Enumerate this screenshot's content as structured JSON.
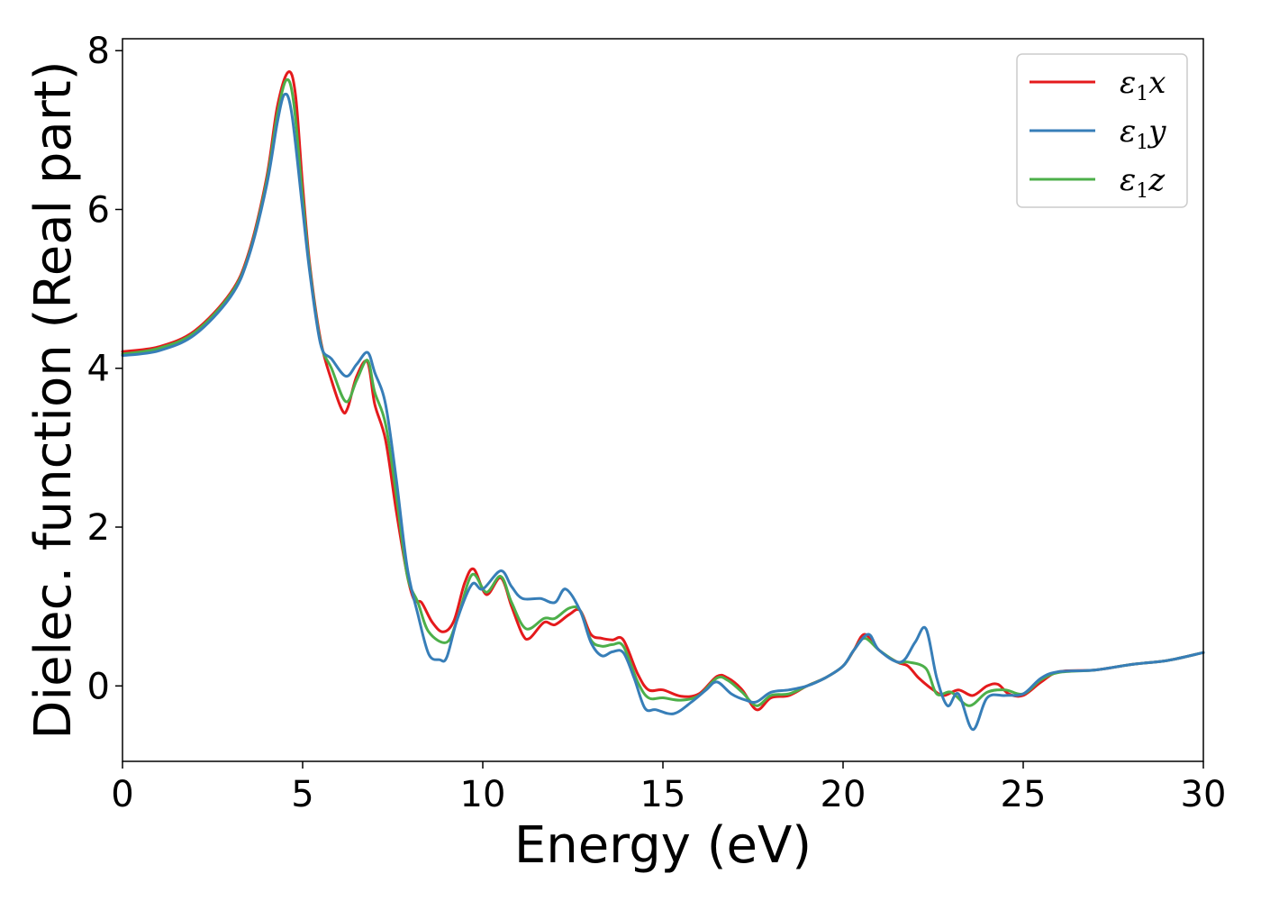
{
  "chart_data": {
    "type": "line",
    "xlabel": "Energy (eV)",
    "ylabel": "Dielec. function (Real part)",
    "xlim": [
      0,
      30
    ],
    "ylim": [
      -0.95,
      8.15
    ],
    "xticks": [
      "0",
      "5",
      "10",
      "15",
      "20",
      "25",
      "30"
    ],
    "yticks": [
      "0",
      "2",
      "4",
      "6",
      "8"
    ],
    "grid": false,
    "legend_position": "top-right",
    "series": [
      {
        "name": "ε1x",
        "legend_base": "ε",
        "legend_sub": "1",
        "legend_tail": "x",
        "color": "#e41a1c",
        "points": [
          [
            0,
            4.21
          ],
          [
            1,
            4.27
          ],
          [
            2,
            4.47
          ],
          [
            3,
            4.95
          ],
          [
            3.5,
            5.45
          ],
          [
            4,
            6.4
          ],
          [
            4.3,
            7.3
          ],
          [
            4.6,
            7.73
          ],
          [
            4.8,
            7.45
          ],
          [
            5.0,
            6.3
          ],
          [
            5.2,
            5.3
          ],
          [
            5.5,
            4.35
          ],
          [
            5.8,
            3.85
          ],
          [
            6.1,
            3.47
          ],
          [
            6.25,
            3.5
          ],
          [
            6.5,
            3.9
          ],
          [
            6.8,
            4.08
          ],
          [
            7.0,
            3.55
          ],
          [
            7.3,
            3.1
          ],
          [
            7.6,
            2.2
          ],
          [
            7.9,
            1.4
          ],
          [
            8.1,
            1.08
          ],
          [
            8.3,
            1.05
          ],
          [
            8.6,
            0.8
          ],
          [
            8.9,
            0.68
          ],
          [
            9.2,
            0.82
          ],
          [
            9.5,
            1.3
          ],
          [
            9.75,
            1.47
          ],
          [
            10.1,
            1.15
          ],
          [
            10.5,
            1.36
          ],
          [
            10.8,
            1.0
          ],
          [
            11.1,
            0.65
          ],
          [
            11.3,
            0.6
          ],
          [
            11.7,
            0.8
          ],
          [
            12.0,
            0.77
          ],
          [
            12.4,
            0.9
          ],
          [
            12.7,
            0.95
          ],
          [
            13.0,
            0.65
          ],
          [
            13.3,
            0.6
          ],
          [
            13.6,
            0.58
          ],
          [
            13.9,
            0.58
          ],
          [
            14.3,
            0.15
          ],
          [
            14.6,
            -0.05
          ],
          [
            15.0,
            -0.05
          ],
          [
            15.5,
            -0.13
          ],
          [
            16.0,
            -0.1
          ],
          [
            16.5,
            0.12
          ],
          [
            16.8,
            0.1
          ],
          [
            17.2,
            -0.05
          ],
          [
            17.6,
            -0.3
          ],
          [
            18.0,
            -0.15
          ],
          [
            18.5,
            -0.12
          ],
          [
            19.0,
            0.0
          ],
          [
            19.5,
            0.1
          ],
          [
            20.0,
            0.25
          ],
          [
            20.3,
            0.45
          ],
          [
            20.6,
            0.65
          ],
          [
            21.0,
            0.45
          ],
          [
            21.5,
            0.3
          ],
          [
            21.8,
            0.25
          ],
          [
            22.1,
            0.1
          ],
          [
            22.5,
            -0.05
          ],
          [
            22.8,
            -0.12
          ],
          [
            23.2,
            -0.05
          ],
          [
            23.6,
            -0.12
          ],
          [
            24.0,
            0.0
          ],
          [
            24.3,
            0.02
          ],
          [
            24.6,
            -0.1
          ],
          [
            25.0,
            -0.12
          ],
          [
            25.5,
            0.05
          ],
          [
            26.0,
            0.18
          ],
          [
            27.0,
            0.2
          ],
          [
            28.0,
            0.27
          ],
          [
            29.0,
            0.32
          ],
          [
            30,
            0.42
          ]
        ]
      },
      {
        "name": "ε1y",
        "legend_base": "ε",
        "legend_sub": "1",
        "legend_tail": "y",
        "color": "#377eb8",
        "points": [
          [
            0,
            4.16
          ],
          [
            1,
            4.22
          ],
          [
            2,
            4.42
          ],
          [
            3,
            4.9
          ],
          [
            3.5,
            5.4
          ],
          [
            4,
            6.3
          ],
          [
            4.3,
            7.1
          ],
          [
            4.5,
            7.45
          ],
          [
            4.7,
            7.2
          ],
          [
            5.0,
            6.0
          ],
          [
            5.2,
            5.2
          ],
          [
            5.5,
            4.3
          ],
          [
            5.8,
            4.12
          ],
          [
            6.2,
            3.9
          ],
          [
            6.5,
            4.05
          ],
          [
            6.8,
            4.2
          ],
          [
            7.0,
            3.95
          ],
          [
            7.3,
            3.55
          ],
          [
            7.6,
            2.6
          ],
          [
            7.9,
            1.5
          ],
          [
            8.2,
            0.9
          ],
          [
            8.5,
            0.4
          ],
          [
            8.8,
            0.33
          ],
          [
            9.0,
            0.36
          ],
          [
            9.3,
            0.85
          ],
          [
            9.7,
            1.28
          ],
          [
            10.0,
            1.22
          ],
          [
            10.5,
            1.45
          ],
          [
            10.8,
            1.25
          ],
          [
            11.1,
            1.1
          ],
          [
            11.6,
            1.1
          ],
          [
            12.0,
            1.05
          ],
          [
            12.3,
            1.22
          ],
          [
            12.7,
            0.95
          ],
          [
            13.0,
            0.55
          ],
          [
            13.3,
            0.38
          ],
          [
            13.6,
            0.43
          ],
          [
            13.9,
            0.42
          ],
          [
            14.2,
            0.1
          ],
          [
            14.5,
            -0.28
          ],
          [
            14.8,
            -0.3
          ],
          [
            15.3,
            -0.35
          ],
          [
            15.8,
            -0.2
          ],
          [
            16.2,
            -0.05
          ],
          [
            16.5,
            0.05
          ],
          [
            16.9,
            -0.1
          ],
          [
            17.3,
            -0.18
          ],
          [
            17.6,
            -0.2
          ],
          [
            18.0,
            -0.08
          ],
          [
            18.5,
            -0.05
          ],
          [
            19.0,
            0.0
          ],
          [
            19.5,
            0.1
          ],
          [
            20.0,
            0.25
          ],
          [
            20.3,
            0.45
          ],
          [
            20.7,
            0.65
          ],
          [
            21.0,
            0.45
          ],
          [
            21.6,
            0.3
          ],
          [
            22.0,
            0.55
          ],
          [
            22.3,
            0.72
          ],
          [
            22.6,
            0.1
          ],
          [
            22.9,
            -0.25
          ],
          [
            23.2,
            -0.1
          ],
          [
            23.6,
            -0.55
          ],
          [
            24.0,
            -0.15
          ],
          [
            24.5,
            -0.12
          ],
          [
            25.0,
            -0.1
          ],
          [
            25.5,
            0.1
          ],
          [
            26.0,
            0.18
          ],
          [
            27.0,
            0.2
          ],
          [
            28.0,
            0.27
          ],
          [
            29.0,
            0.32
          ],
          [
            30,
            0.42
          ]
        ]
      },
      {
        "name": "ε1z",
        "legend_base": "ε",
        "legend_sub": "1",
        "legend_tail": "z",
        "color": "#4daf4a",
        "points": [
          [
            0,
            4.18
          ],
          [
            1,
            4.25
          ],
          [
            2,
            4.45
          ],
          [
            3,
            4.93
          ],
          [
            3.5,
            5.42
          ],
          [
            4,
            6.35
          ],
          [
            4.3,
            7.2
          ],
          [
            4.55,
            7.63
          ],
          [
            4.75,
            7.35
          ],
          [
            5.0,
            6.15
          ],
          [
            5.2,
            5.25
          ],
          [
            5.5,
            4.32
          ],
          [
            5.8,
            4.0
          ],
          [
            6.2,
            3.58
          ],
          [
            6.5,
            3.85
          ],
          [
            6.8,
            4.1
          ],
          [
            7.0,
            3.7
          ],
          [
            7.3,
            3.3
          ],
          [
            7.6,
            2.4
          ],
          [
            7.9,
            1.4
          ],
          [
            8.2,
            1.05
          ],
          [
            8.5,
            0.68
          ],
          [
            9.0,
            0.55
          ],
          [
            9.3,
            0.85
          ],
          [
            9.7,
            1.4
          ],
          [
            10.1,
            1.18
          ],
          [
            10.5,
            1.38
          ],
          [
            10.8,
            1.05
          ],
          [
            11.2,
            0.72
          ],
          [
            11.7,
            0.85
          ],
          [
            12.0,
            0.85
          ],
          [
            12.4,
            0.98
          ],
          [
            12.7,
            0.95
          ],
          [
            13.0,
            0.58
          ],
          [
            13.3,
            0.5
          ],
          [
            13.6,
            0.52
          ],
          [
            13.9,
            0.5
          ],
          [
            14.3,
            0.05
          ],
          [
            14.6,
            -0.15
          ],
          [
            15.0,
            -0.15
          ],
          [
            15.5,
            -0.18
          ],
          [
            16.0,
            -0.12
          ],
          [
            16.5,
            0.1
          ],
          [
            16.8,
            0.07
          ],
          [
            17.2,
            -0.08
          ],
          [
            17.6,
            -0.25
          ],
          [
            18.0,
            -0.12
          ],
          [
            18.5,
            -0.1
          ],
          [
            19.0,
            0.0
          ],
          [
            19.5,
            0.1
          ],
          [
            20.0,
            0.25
          ],
          [
            20.3,
            0.45
          ],
          [
            20.6,
            0.6
          ],
          [
            21.0,
            0.45
          ],
          [
            21.5,
            0.3
          ],
          [
            21.8,
            0.3
          ],
          [
            22.3,
            0.22
          ],
          [
            22.6,
            -0.1
          ],
          [
            23.0,
            -0.08
          ],
          [
            23.5,
            -0.25
          ],
          [
            24.0,
            -0.08
          ],
          [
            24.5,
            -0.05
          ],
          [
            25.0,
            -0.1
          ],
          [
            25.5,
            0.08
          ],
          [
            26.0,
            0.17
          ],
          [
            27.0,
            0.2
          ],
          [
            28.0,
            0.27
          ],
          [
            29.0,
            0.32
          ],
          [
            30,
            0.42
          ]
        ]
      }
    ]
  }
}
